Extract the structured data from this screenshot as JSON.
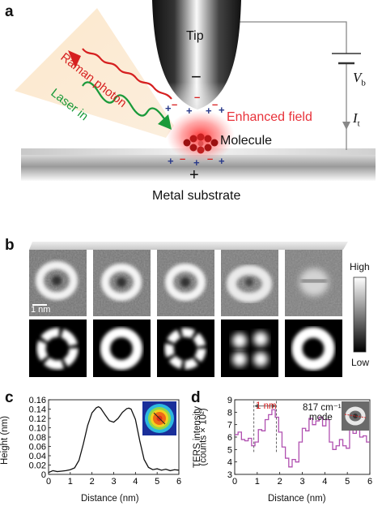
{
  "panel_a": {
    "letter": "a",
    "tip": "Tip",
    "minus": "−",
    "raman": "Raman photon",
    "laser": "Laser in",
    "enhanced": "Enhanced field",
    "molecule": "Molecule",
    "plus": "+",
    "substrate": "Metal substrate",
    "vb": "V",
    "vb_sub": "b",
    "it": "I",
    "it_sub": "t",
    "colors": {
      "raman": "#d62020",
      "laser": "#1a9a3a",
      "field": "#e8323a",
      "charge_pos": "#2a3a8a",
      "charge_neg": "#d82020"
    }
  },
  "panel_b": {
    "letter": "b",
    "scalebar": "1 nm",
    "colorbar_high": "High",
    "colorbar_low": "Low"
  },
  "panel_c": {
    "letter": "c",
    "ylabel": "Height (nm)",
    "xlabel": "Distance (nm)"
  },
  "panel_d": {
    "letter": "d",
    "ylabel1": "TERS intensity",
    "ylabel2": "(counts × 10²)",
    "xlabel": "Distance (nm)",
    "annotation": "1 nm",
    "mode_line1": "817 cm⁻¹",
    "mode_line2": "mode"
  },
  "chart_data": [
    {
      "type": "line",
      "title": "",
      "xlabel": "Distance (nm)",
      "ylabel": "Height (nm)",
      "xlim": [
        0,
        6
      ],
      "ylim": [
        0,
        0.16
      ],
      "xticks": [
        "0",
        "1",
        "2",
        "3",
        "4",
        "5",
        "6"
      ],
      "yticks": [
        "0",
        "0.02",
        "0.04",
        "0.06",
        "0.08",
        "0.10",
        "0.12",
        "0.14",
        "0.16"
      ],
      "series": [
        {
          "x": [
            0,
            0.2,
            0.4,
            0.6,
            0.8,
            1.0,
            1.2,
            1.4,
            1.6,
            1.8,
            2.0,
            2.2,
            2.3,
            2.4,
            2.6,
            2.8,
            3.0,
            3.2,
            3.4,
            3.6,
            3.7,
            3.8,
            4.0,
            4.2,
            4.4,
            4.6,
            4.8,
            5.0,
            5.2,
            5.4,
            5.6,
            5.8,
            6.0
          ],
          "y": [
            0.004,
            0.008,
            0.006,
            0.007,
            0.008,
            0.01,
            0.014,
            0.03,
            0.065,
            0.105,
            0.132,
            0.143,
            0.145,
            0.142,
            0.128,
            0.115,
            0.112,
            0.12,
            0.133,
            0.141,
            0.142,
            0.14,
            0.118,
            0.072,
            0.032,
            0.015,
            0.01,
            0.012,
            0.009,
            0.011,
            0.008,
            0.01,
            0.009
          ],
          "color": "#111111"
        }
      ]
    },
    {
      "type": "line",
      "title": "",
      "xlabel": "Distance (nm)",
      "ylabel": "TERS intensity (counts × 10²)",
      "xlim": [
        0,
        6
      ],
      "ylim": [
        3,
        9
      ],
      "xticks": [
        "0",
        "1",
        "2",
        "3",
        "4",
        "5",
        "6"
      ],
      "yticks": [
        "3",
        "4",
        "5",
        "6",
        "7",
        "8",
        "9"
      ],
      "series": [
        {
          "step": true,
          "x": [
            0,
            0.15,
            0.3,
            0.45,
            0.6,
            0.75,
            0.9,
            1.05,
            1.2,
            1.35,
            1.5,
            1.65,
            1.8,
            1.95,
            2.1,
            2.25,
            2.4,
            2.55,
            2.7,
            2.85,
            3.0,
            3.15,
            3.3,
            3.45,
            3.6,
            3.75,
            3.9,
            4.05,
            4.2,
            4.35,
            4.5,
            4.65,
            4.8,
            4.95,
            5.1,
            5.25,
            5.4,
            5.55,
            5.7,
            5.85
          ],
          "y": [
            6.2,
            6.4,
            5.8,
            5.7,
            5.9,
            5.3,
            5.6,
            6.6,
            6.5,
            7.4,
            7.8,
            8.2,
            7.6,
            6.4,
            5.2,
            4.3,
            3.6,
            4.2,
            4.0,
            5.6,
            6.7,
            6.5,
            7.5,
            7.0,
            7.3,
            7.6,
            6.9,
            7.4,
            5.6,
            5.0,
            5.3,
            5.8,
            5.3,
            5.1,
            6.8,
            6.3,
            6.9,
            6.0,
            6.1,
            5.6
          ],
          "color": "#b050b0"
        }
      ]
    }
  ]
}
